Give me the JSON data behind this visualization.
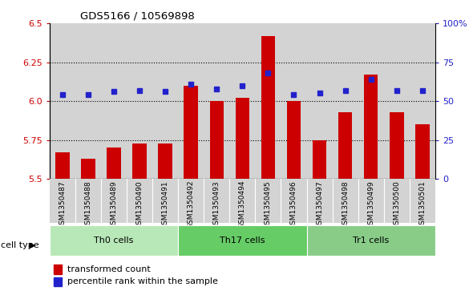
{
  "title": "GDS5166 / 10569898",
  "samples": [
    "GSM1350487",
    "GSM1350488",
    "GSM1350489",
    "GSM1350490",
    "GSM1350491",
    "GSM1350492",
    "GSM1350493",
    "GSM1350494",
    "GSM1350495",
    "GSM1350496",
    "GSM1350497",
    "GSM1350498",
    "GSM1350499",
    "GSM1350500",
    "GSM1350501"
  ],
  "bar_values": [
    5.67,
    5.63,
    5.7,
    5.73,
    5.73,
    6.1,
    6.0,
    6.02,
    6.42,
    6.0,
    5.75,
    5.93,
    6.17,
    5.93,
    5.85
  ],
  "dot_values": [
    6.04,
    6.04,
    6.06,
    6.07,
    6.06,
    6.11,
    6.08,
    6.1,
    6.18,
    6.04,
    6.05,
    6.07,
    6.14,
    6.07,
    6.07
  ],
  "ylim_left": [
    5.5,
    6.5
  ],
  "ylim_right": [
    0,
    100
  ],
  "yticks_left": [
    5.5,
    5.75,
    6.0,
    6.25,
    6.5
  ],
  "yticks_right": [
    0,
    25,
    50,
    75,
    100
  ],
  "bar_color": "#cc0000",
  "dot_color": "#2222cc",
  "bg_color": "#d3d3d3",
  "cell_groups": [
    {
      "label": "Th0 cells",
      "start": 0,
      "end": 4,
      "color": "#b8e8b8"
    },
    {
      "label": "Th17 cells",
      "start": 5,
      "end": 9,
      "color": "#66cc66"
    },
    {
      "label": "Tr1 cells",
      "start": 10,
      "end": 14,
      "color": "#88cc88"
    }
  ],
  "cell_type_label": "cell type",
  "legend_bar_label": "transformed count",
  "legend_dot_label": "percentile rank within the sample"
}
